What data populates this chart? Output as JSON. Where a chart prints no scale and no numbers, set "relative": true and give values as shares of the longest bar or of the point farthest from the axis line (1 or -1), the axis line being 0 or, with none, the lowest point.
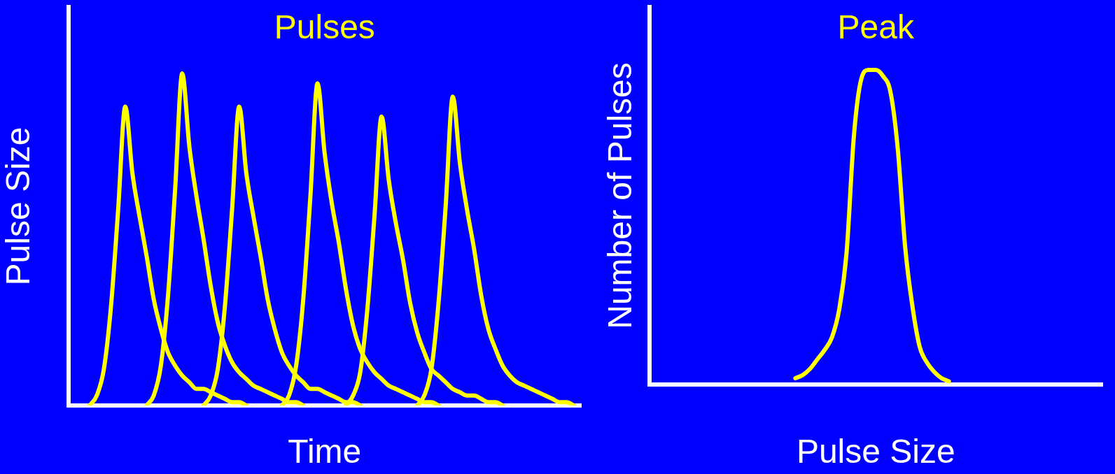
{
  "chart_data": [
    {
      "type": "line",
      "title": "Pulses",
      "xlabel": "Time",
      "ylabel": "Pulse Size",
      "relative": true,
      "grid": false,
      "legend": false,
      "marker": "none",
      "line_style": "solid",
      "categories": [
        null,
        null,
        null,
        null,
        null,
        null,
        null,
        null,
        null,
        null,
        null,
        null,
        null,
        null,
        null,
        null,
        null,
        null,
        null,
        null,
        null,
        null,
        null,
        null,
        null,
        null,
        null,
        null,
        null,
        null,
        null,
        null,
        null,
        null,
        null,
        null,
        null,
        null,
        null,
        null,
        null,
        null,
        null,
        null,
        null,
        null,
        null,
        null,
        null,
        null,
        null,
        null,
        null,
        null,
        null,
        null,
        null,
        null,
        null,
        null,
        null,
        null,
        null,
        null,
        null,
        null,
        null,
        null,
        null,
        null,
        null,
        null,
        null
      ],
      "series": [
        {
          "color": "#ffff00",
          "values": [
            null,
            null,
            null,
            0,
            0.03,
            0.11,
            0.3,
            0.59,
            0.9,
            0.7,
            0.57,
            0.45,
            0.32,
            0.23,
            0.16,
            0.12,
            0.09,
            0.07,
            0.05,
            0.05,
            0.04,
            0.03,
            0.02,
            0.01,
            0.01,
            0,
            null,
            null,
            null,
            null,
            null,
            null,
            null,
            null,
            null,
            null,
            null,
            null,
            null,
            null,
            null,
            null,
            null,
            null,
            null,
            null,
            null,
            null,
            null,
            null,
            null,
            null,
            null,
            null,
            null,
            null,
            null,
            null,
            null,
            null,
            null,
            null,
            null,
            null,
            null,
            null,
            null,
            null,
            null,
            null,
            null,
            null,
            null
          ]
        },
        {
          "color": "#ffff00",
          "values": [
            null,
            null,
            null,
            null,
            null,
            null,
            null,
            null,
            null,
            null,
            null,
            0,
            0.03,
            0.12,
            0.33,
            0.65,
            1,
            0.78,
            0.63,
            0.5,
            0.36,
            0.25,
            0.18,
            0.13,
            0.1,
            0.08,
            0.06,
            0.05,
            0.04,
            0.03,
            0.02,
            0.01,
            0.01,
            0,
            null,
            null,
            null,
            null,
            null,
            null,
            null,
            null,
            null,
            null,
            null,
            null,
            null,
            null,
            null,
            null,
            null,
            null,
            null,
            null,
            null,
            null,
            null,
            null,
            null,
            null,
            null,
            null,
            null,
            null,
            null,
            null,
            null,
            null,
            null,
            null,
            null,
            null,
            null
          ]
        },
        {
          "color": "#ffff00",
          "values": [
            null,
            null,
            null,
            null,
            null,
            null,
            null,
            null,
            null,
            null,
            null,
            null,
            null,
            null,
            null,
            null,
            null,
            null,
            null,
            0,
            0.03,
            0.11,
            0.3,
            0.59,
            0.9,
            0.7,
            0.57,
            0.45,
            0.32,
            0.23,
            0.16,
            0.12,
            0.09,
            0.07,
            0.05,
            0.05,
            0.04,
            0.03,
            0.02,
            0.01,
            0.01,
            0,
            null,
            null,
            null,
            null,
            null,
            null,
            null,
            null,
            null,
            null,
            null,
            null,
            null,
            null,
            null,
            null,
            null,
            null,
            null,
            null,
            null,
            null,
            null,
            null,
            null,
            null,
            null,
            null,
            null,
            null,
            null
          ]
        },
        {
          "color": "#ffff00",
          "values": [
            null,
            null,
            null,
            null,
            null,
            null,
            null,
            null,
            null,
            null,
            null,
            null,
            null,
            null,
            null,
            null,
            null,
            null,
            null,
            null,
            null,
            null,
            null,
            null,
            null,
            null,
            null,
            null,
            null,
            null,
            0,
            0.03,
            0.12,
            0.32,
            0.63,
            0.97,
            0.76,
            0.61,
            0.49,
            0.35,
            0.24,
            0.17,
            0.13,
            0.1,
            0.08,
            0.06,
            0.05,
            0.04,
            0.03,
            0.02,
            0.01,
            0.01,
            0,
            null,
            null,
            null,
            null,
            null,
            null,
            null,
            null,
            null,
            null,
            null,
            null,
            null,
            null,
            null,
            null,
            null,
            null,
            null,
            null
          ]
        },
        {
          "color": "#ffff00",
          "values": [
            null,
            null,
            null,
            null,
            null,
            null,
            null,
            null,
            null,
            null,
            null,
            null,
            null,
            null,
            null,
            null,
            null,
            null,
            null,
            null,
            null,
            null,
            null,
            null,
            null,
            null,
            null,
            null,
            null,
            null,
            null,
            null,
            null,
            null,
            null,
            null,
            null,
            null,
            null,
            0,
            0.03,
            0.1,
            0.29,
            0.57,
            0.87,
            0.68,
            0.55,
            0.44,
            0.31,
            0.22,
            0.16,
            0.11,
            0.09,
            0.07,
            0.05,
            0.04,
            0.03,
            0.03,
            0.02,
            0.01,
            0.01,
            0,
            null,
            null,
            null,
            null,
            null,
            null,
            null,
            null,
            null,
            null,
            null
          ]
        },
        {
          "color": "#ffff00",
          "values": [
            null,
            null,
            null,
            null,
            null,
            null,
            null,
            null,
            null,
            null,
            null,
            null,
            null,
            null,
            null,
            null,
            null,
            null,
            null,
            null,
            null,
            null,
            null,
            null,
            null,
            null,
            null,
            null,
            null,
            null,
            null,
            null,
            null,
            null,
            null,
            null,
            null,
            null,
            null,
            null,
            null,
            null,
            null,
            null,
            null,
            null,
            null,
            null,
            null,
            0,
            0.03,
            0.11,
            0.31,
            0.6,
            0.93,
            0.73,
            0.59,
            0.47,
            0.33,
            0.23,
            0.17,
            0.12,
            0.09,
            0.07,
            0.06,
            0.05,
            0.04,
            0.03,
            0.02,
            0.01,
            0.01,
            0,
            null
          ]
        }
      ]
    },
    {
      "type": "line",
      "title": "Peak",
      "xlabel": "Pulse Size",
      "ylabel": "Number of Pulses",
      "relative": true,
      "grid": false,
      "legend": false,
      "marker": "none",
      "line_style": "solid",
      "categories": [
        null,
        null,
        null,
        null,
        null,
        null,
        null,
        null,
        null,
        null,
        null,
        null,
        null,
        null,
        null,
        null,
        null,
        null,
        null,
        null,
        null,
        null,
        null,
        null,
        null,
        null,
        null,
        null,
        null,
        null,
        null,
        null,
        null,
        null,
        null,
        null,
        null,
        null,
        null,
        null,
        null,
        null,
        null,
        null,
        null,
        null,
        null,
        null,
        null,
        null,
        null,
        null,
        null,
        null,
        null,
        null,
        null,
        null,
        null,
        null,
        null,
        null,
        null
      ],
      "series": [
        {
          "color": "#ffff00",
          "values": [
            null,
            null,
            null,
            null,
            null,
            null,
            null,
            null,
            null,
            null,
            null,
            null,
            null,
            null,
            null,
            null,
            null,
            null,
            null,
            null,
            0.02,
            0.03,
            0.05,
            0.08,
            0.11,
            0.15,
            0.24,
            0.42,
            0.79,
            0.97,
            1,
            1,
            0.98,
            0.93,
            0.75,
            0.44,
            0.25,
            0.12,
            0.07,
            0.04,
            0.02,
            0.01,
            null,
            null,
            null,
            null,
            null,
            null,
            null,
            null,
            null,
            null,
            null,
            null,
            null,
            null,
            null,
            null,
            null,
            null,
            null,
            null,
            null
          ]
        }
      ]
    }
  ]
}
